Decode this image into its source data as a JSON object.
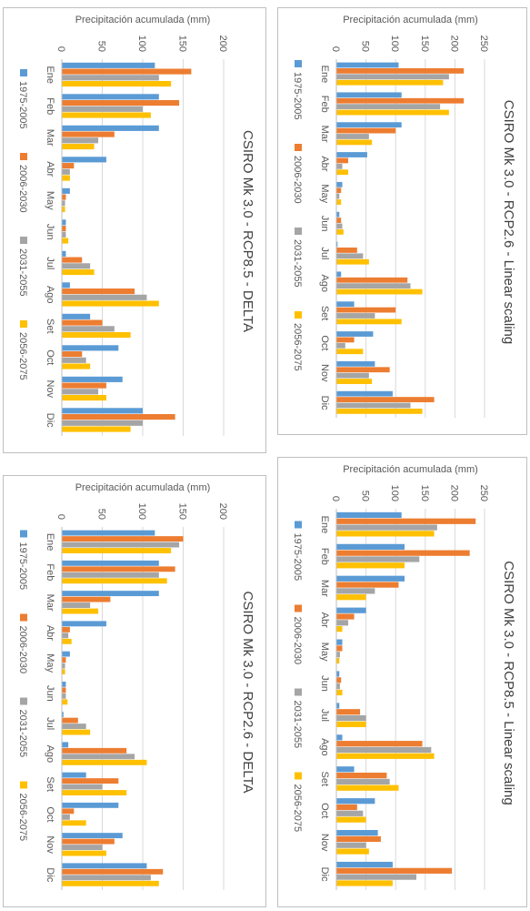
{
  "colors": {
    "s1": "#5B9BD5",
    "s2": "#ED7D31",
    "s3": "#A5A5A5",
    "s4": "#FFC000"
  },
  "chart_data": [
    {
      "type": "bar",
      "title": "CSIRO Mk 3.0 - RCP2.6 - Linear scaling",
      "ylabel": "Precipitación acumulada (mm)",
      "ylim": [
        0,
        250
      ],
      "yticks": [
        0,
        50,
        100,
        150,
        200,
        250
      ],
      "categories": [
        "Ene",
        "Feb",
        "Mar",
        "Abr",
        "May",
        "Jun",
        "Jul",
        "Ago",
        "Set",
        "Oct",
        "Nov",
        "Dic"
      ],
      "series": [
        {
          "name": "1975-2005",
          "values": [
            105,
            110,
            110,
            52,
            10,
            5,
            2,
            8,
            30,
            62,
            65,
            95
          ]
        },
        {
          "name": "2006-2030",
          "values": [
            215,
            215,
            100,
            20,
            8,
            8,
            35,
            120,
            100,
            30,
            90,
            165
          ]
        },
        {
          "name": "2031-2055",
          "values": [
            190,
            175,
            55,
            10,
            5,
            10,
            45,
            125,
            65,
            15,
            55,
            125
          ]
        },
        {
          "name": "2056-2075",
          "values": [
            180,
            190,
            60,
            20,
            8,
            12,
            55,
            145,
            110,
            45,
            60,
            145
          ]
        }
      ]
    },
    {
      "type": "bar",
      "title": "CSIRO Mk 3.0 - RCP2.6 - DELTA",
      "ylabel": "Precipitación acumulada (mm)",
      "ylim": [
        0,
        200
      ],
      "yticks": [
        0,
        50,
        100,
        150,
        200
      ],
      "categories": [
        "Ene",
        "Feb",
        "Mar",
        "Abr",
        "May",
        "Jun",
        "Jul",
        "Ago",
        "Set",
        "Oct",
        "Nov",
        "Dic"
      ],
      "series": [
        {
          "name": "1975-2005",
          "values": [
            115,
            120,
            120,
            55,
            10,
            5,
            2,
            8,
            30,
            70,
            75,
            105
          ]
        },
        {
          "name": "2006-2030",
          "values": [
            150,
            140,
            60,
            10,
            5,
            5,
            20,
            80,
            70,
            15,
            65,
            125
          ]
        },
        {
          "name": "2031-2055",
          "values": [
            145,
            120,
            35,
            8,
            4,
            5,
            30,
            90,
            50,
            10,
            50,
            110
          ]
        },
        {
          "name": "2056-2075",
          "values": [
            135,
            130,
            45,
            12,
            4,
            7,
            35,
            105,
            80,
            30,
            55,
            120
          ]
        }
      ]
    },
    {
      "type": "bar",
      "title": "CSIRO Mk 3.0 - RCP8.5 - Linear scaling",
      "ylabel": "Precipitación acumulada (mm)",
      "ylim": [
        0,
        250
      ],
      "yticks": [
        0,
        50,
        100,
        150,
        200,
        250
      ],
      "categories": [
        "Ene",
        "Feb",
        "Mar",
        "Abr",
        "May",
        "Jun",
        "Jul",
        "Ago",
        "Set",
        "Oct",
        "Nov",
        "Dic"
      ],
      "series": [
        {
          "name": "1975-2005",
          "values": [
            110,
            115,
            115,
            50,
            10,
            5,
            5,
            10,
            30,
            65,
            70,
            95
          ]
        },
        {
          "name": "2006-2030",
          "values": [
            235,
            225,
            105,
            30,
            10,
            8,
            40,
            145,
            85,
            35,
            75,
            195
          ]
        },
        {
          "name": "2031-2055",
          "values": [
            170,
            140,
            65,
            20,
            6,
            6,
            50,
            160,
            90,
            45,
            50,
            135
          ]
        },
        {
          "name": "2056-2075",
          "values": [
            165,
            115,
            50,
            10,
            5,
            10,
            50,
            165,
            105,
            50,
            55,
            95
          ]
        }
      ]
    },
    {
      "type": "bar",
      "title": "CSIRO Mk 3.0 - RCP8.5 - DELTA",
      "ylabel": "Precipitación acumulada (mm)",
      "ylim": [
        0,
        200
      ],
      "yticks": [
        0,
        50,
        100,
        150,
        200
      ],
      "categories": [
        "Ene",
        "Feb",
        "Mar",
        "Abr",
        "May",
        "Jun",
        "Jul",
        "Ago",
        "Set",
        "Oct",
        "Nov",
        "Dic"
      ],
      "series": [
        {
          "name": "1975-2005",
          "values": [
            115,
            120,
            120,
            55,
            10,
            5,
            5,
            10,
            35,
            70,
            75,
            100
          ]
        },
        {
          "name": "2006-2030",
          "values": [
            160,
            145,
            65,
            15,
            5,
            5,
            25,
            90,
            50,
            25,
            55,
            140
          ]
        },
        {
          "name": "2031-2055",
          "values": [
            120,
            100,
            45,
            10,
            4,
            5,
            35,
            105,
            65,
            30,
            45,
            100
          ]
        },
        {
          "name": "2056-2075",
          "values": [
            135,
            110,
            40,
            10,
            4,
            8,
            40,
            120,
            85,
            35,
            55,
            85
          ]
        }
      ]
    }
  ]
}
